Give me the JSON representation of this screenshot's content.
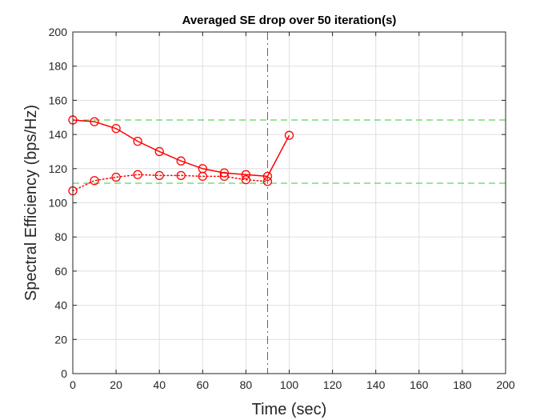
{
  "chart_data": {
    "type": "line",
    "title": "Averaged SE drop over 50 iteration(s)",
    "xlabel": "Time (sec)",
    "ylabel": "Spectral Efficiency (bps/Hz)",
    "xlim": [
      0,
      200
    ],
    "ylim": [
      0,
      200
    ],
    "xticks": [
      "0",
      "20",
      "40",
      "60",
      "80",
      "100",
      "120",
      "140",
      "160",
      "180",
      "200"
    ],
    "yticks": [
      "0",
      "20",
      "40",
      "60",
      "80",
      "100",
      "120",
      "140",
      "160",
      "180",
      "200"
    ],
    "grid": true,
    "legend": "none",
    "series": [
      {
        "style": "solid",
        "marker": "circle",
        "color": "#ff0000",
        "x": [
          0,
          10,
          20,
          30,
          40,
          50,
          60,
          70,
          80,
          90,
          100
        ],
        "y": [
          148.5,
          147.5,
          143.5,
          136,
          130,
          124.5,
          120,
          117.5,
          116.5,
          115.5,
          139.5
        ]
      },
      {
        "style": "dotted",
        "marker": "circle",
        "color": "#ff0000",
        "x": [
          0,
          10,
          20,
          30,
          40,
          50,
          60,
          70,
          80,
          90
        ],
        "y": [
          107,
          113,
          115,
          116.5,
          116,
          116,
          115.5,
          115.5,
          113.5,
          112.5
        ]
      }
    ],
    "reference_lines": [
      {
        "orientation": "horizontal",
        "value": 148.5,
        "style": "dashed",
        "color": "#33cc33"
      },
      {
        "orientation": "horizontal",
        "value": 111.5,
        "style": "dashed",
        "color": "#33cc33"
      },
      {
        "orientation": "vertical",
        "value": 90,
        "style": "dash-dot",
        "color": "#cc3333"
      }
    ]
  }
}
